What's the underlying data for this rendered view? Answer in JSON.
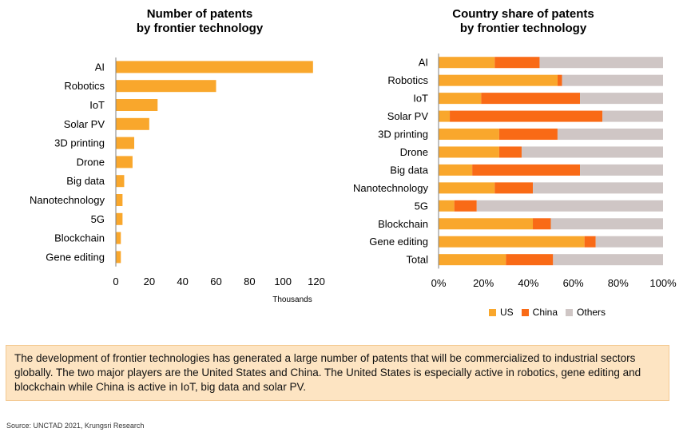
{
  "colors": {
    "us": "#f9a72c",
    "china": "#f96a16",
    "others": "#cfc6c5",
    "bar": "#f9a72c",
    "axis": "#808080"
  },
  "note": "The development of frontier technologies has generated a large number of patents that will be commercialized to industrial sectors globally. The two major players are the United States and China. The United States is especially active in robotics, gene editing and blockchain while China is active in IoT, big data and solar PV.",
  "source": "Source: UNCTAD 2021, Krungsri Research",
  "chart_data": [
    {
      "type": "bar",
      "orientation": "horizontal",
      "title": "Number of patents\nby frontier technology",
      "xlabel": "Thousands",
      "categories": [
        "AI",
        "Robotics",
        "IoT",
        "Solar PV",
        "3D printing",
        "Drone",
        "Big data",
        "Nanotechnology",
        "5G",
        "Blockchain",
        "Gene editing"
      ],
      "values": [
        118,
        60,
        25,
        20,
        11,
        10,
        5,
        4,
        4,
        3,
        3
      ],
      "xlim": [
        0,
        120
      ],
      "xticks": [
        0,
        20,
        40,
        60,
        80,
        100,
        120
      ]
    },
    {
      "type": "bar",
      "orientation": "horizontal",
      "stacked": true,
      "percent": true,
      "title": "Country share of patents\nby frontier technology",
      "categories": [
        "AI",
        "Robotics",
        "IoT",
        "Solar PV",
        "3D printing",
        "Drone",
        "Big data",
        "Nanotechnology",
        "5G",
        "Blockchain",
        "Gene editing",
        "Total"
      ],
      "series": [
        {
          "name": "US",
          "values": [
            25,
            53,
            19,
            5,
            27,
            27,
            15,
            25,
            7,
            42,
            65,
            30
          ]
        },
        {
          "name": "China",
          "values": [
            20,
            2,
            44,
            68,
            26,
            10,
            48,
            17,
            10,
            8,
            5,
            21
          ]
        },
        {
          "name": "Others",
          "values": [
            55,
            45,
            37,
            27,
            47,
            63,
            37,
            58,
            83,
            50,
            30,
            49
          ]
        }
      ],
      "xlim": [
        0,
        100
      ],
      "xticks": [
        "0%",
        "20%",
        "40%",
        "60%",
        "80%",
        "100%"
      ],
      "legend": "bottom"
    }
  ]
}
